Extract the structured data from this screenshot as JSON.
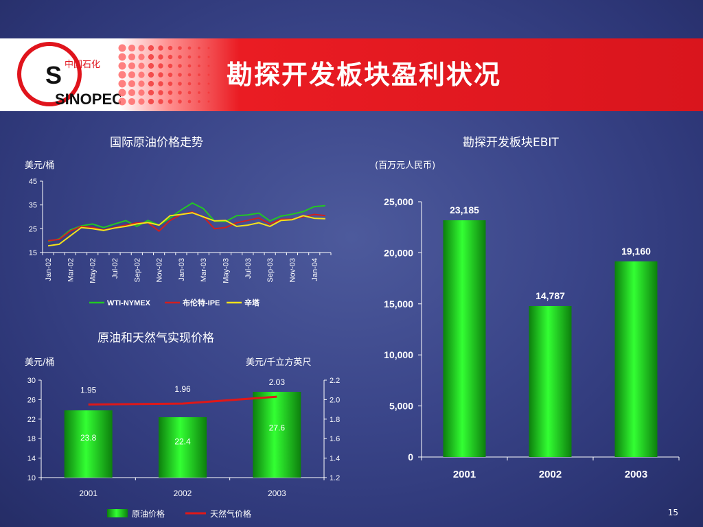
{
  "slide": {
    "title": "勘探开发板块盈利状况",
    "page_number": "15",
    "logo_text": "SINOPEC",
    "logo_chinese": "中国石化"
  },
  "chart_data": [
    {
      "id": "oil-price",
      "type": "line",
      "title": "国际原油价格走势",
      "ylabel": "美元/桶",
      "ylim": [
        15,
        45
      ],
      "yticks": [
        15,
        25,
        35,
        45
      ],
      "x": [
        "Jan-02",
        "Feb-02",
        "Mar-02",
        "Apr-02",
        "May-02",
        "Jun-02",
        "Jul-02",
        "Aug-02",
        "Sep-02",
        "Oct-02",
        "Nov-02",
        "Dec-02",
        "Jan-03",
        "Feb-03",
        "Mar-03",
        "Apr-03",
        "May-03",
        "Jun-03",
        "Jul-03",
        "Aug-03",
        "Sep-03",
        "Oct-03",
        "Nov-03",
        "Dec-03",
        "Jan-04",
        "Feb-04"
      ],
      "xtick_labels": [
        "Jan-02",
        "Mar-02",
        "May-02",
        "Jul-02",
        "Sep-02",
        "Nov-02",
        "Jan-03",
        "Mar-03",
        "May-03",
        "Jul-03",
        "Sep-03",
        "Nov-03",
        "Jan-04"
      ],
      "legend_position": "bottom",
      "series": [
        {
          "name": "WTI-NYMEX",
          "color": "#22c822",
          "values": [
            19.7,
            20.7,
            24.5,
            26.2,
            27.0,
            25.5,
            27.0,
            28.4,
            26.0,
            28.5,
            26.5,
            29.5,
            32.9,
            35.8,
            33.5,
            28.2,
            28.0,
            30.5,
            30.8,
            31.6,
            28.3,
            30.3,
            31.1,
            32.2,
            34.3,
            34.7
          ]
        },
        {
          "name": "布伦特-IPE",
          "color": "#d21f1f",
          "values": [
            20.0,
            20.5,
            24.0,
            26.0,
            25.5,
            24.5,
            25.5,
            26.5,
            27.5,
            27.5,
            24.0,
            28.5,
            31.0,
            32.0,
            30.0,
            25.0,
            25.5,
            27.5,
            28.5,
            29.5,
            27.0,
            29.0,
            29.0,
            30.0,
            31.0,
            30.5
          ]
        },
        {
          "name": "辛塔",
          "color": "#f5e21a",
          "values": [
            17.8,
            18.5,
            22.0,
            25.5,
            25.0,
            24.3,
            25.3,
            26.0,
            27.0,
            27.6,
            26.5,
            30.5,
            31.0,
            31.7,
            30.0,
            28.3,
            28.5,
            26.0,
            26.5,
            27.5,
            26.0,
            28.5,
            28.8,
            30.5,
            29.4,
            29.2
          ]
        }
      ]
    },
    {
      "id": "realized-price",
      "type": "bar",
      "title": "原油和天然气实现价格",
      "ylabel": "美元/桶",
      "y2label": "美元/千立方英尺",
      "categories": [
        "2001",
        "2002",
        "2003"
      ],
      "ylim": [
        10,
        30
      ],
      "yticks": [
        10,
        14,
        18,
        22,
        26,
        30
      ],
      "y2lim": [
        1.2,
        2.2
      ],
      "y2ticks": [
        "1.2",
        "1.4",
        "1.6",
        "1.8",
        "2.0",
        "2.2"
      ],
      "legend_position": "bottom",
      "series": [
        {
          "name": "原油价格",
          "type": "bar",
          "axis": "left",
          "color": "#1fcc1f",
          "values": [
            23.8,
            22.4,
            27.6
          ]
        },
        {
          "name": "天然气价格",
          "type": "line",
          "axis": "right",
          "color": "#e01818",
          "values": [
            1.95,
            1.96,
            2.03
          ]
        }
      ]
    },
    {
      "id": "ebit",
      "type": "bar",
      "title": "勘探开发板块EBIT",
      "ylabel": "(百万元人民币)",
      "categories": [
        "2001",
        "2002",
        "2003"
      ],
      "ylim": [
        0,
        25000
      ],
      "yticks": [
        "0",
        "5,000",
        "10,000",
        "15,000",
        "20,000",
        "25,000"
      ],
      "color": "#1fcc1f",
      "values": [
        23185,
        14787,
        19160
      ],
      "value_labels": [
        "23,185",
        "14,787",
        "19,160"
      ]
    }
  ]
}
